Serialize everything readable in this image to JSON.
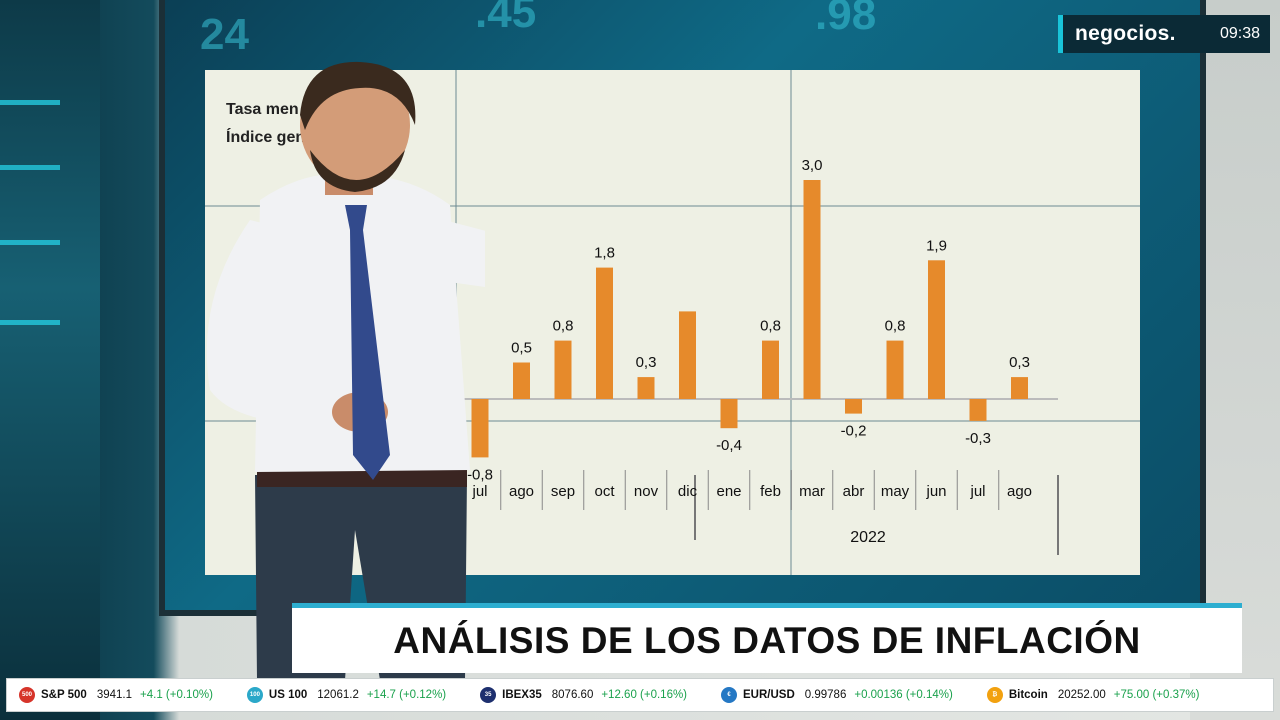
{
  "channel": {
    "logo": "negocios.",
    "clock": "09:38"
  },
  "headline": "ANÁLISIS DE LOS DATOS DE INFLACIÓN",
  "chart_subtitle": {
    "line1": "Tasa men",
    "line2": "Índice gene"
  },
  "colors": {
    "bar": "#e68a2b",
    "accent": "#2daed0"
  },
  "chart_data": {
    "type": "bar",
    "title": "Tasa mensual — Índice general",
    "categories": [
      "jul",
      "ago",
      "sep",
      "oct",
      "nov",
      "dic",
      "ene",
      "feb",
      "mar",
      "abr",
      "may",
      "jun",
      "jul",
      "ago"
    ],
    "values": [
      -0.8,
      0.5,
      0.8,
      1.8,
      0.3,
      1.2,
      -0.4,
      0.8,
      3.0,
      -0.2,
      0.8,
      1.9,
      -0.3,
      0.3
    ],
    "labels": [
      "-0,8",
      "0,5",
      "0,8",
      "1,8",
      "0,3",
      "",
      "-0,4",
      "0,8",
      "3,0",
      "-0,2",
      "0,8",
      "1,9",
      "-0,3",
      "0,3"
    ],
    "year_label": "2022",
    "partial_label": "5",
    "ylim": [
      -1,
      3.2
    ],
    "grid": false
  },
  "ticker": [
    {
      "icon": "sp500-icon",
      "name": "S&P 500",
      "value": "3941.1",
      "change": "+4.1 (+0.10%)",
      "color": "#d6342a"
    },
    {
      "icon": "us100-icon",
      "name": "US 100",
      "value": "12061.2",
      "change": "+14.7 (+0.12%)",
      "color": "#2ba8c9"
    },
    {
      "icon": "ibex-icon",
      "name": "IBEX35",
      "value": "8076.60",
      "change": "+12.60 (+0.16%)",
      "color": "#1d2f6e"
    },
    {
      "icon": "euro-icon",
      "name": "EUR/USD",
      "value": "0.99786",
      "change": "+0.00136 (+0.14%)",
      "color": "#2578c4"
    },
    {
      "icon": "bitcoin-icon",
      "name": "Bitcoin",
      "value": "20252.00",
      "change": "+75.00 (+0.37%)",
      "color": "#f2a10f"
    }
  ]
}
